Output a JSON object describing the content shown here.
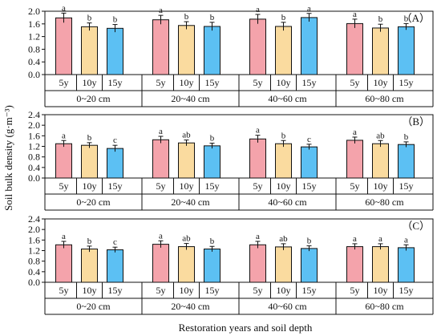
{
  "figure": {
    "ylabel": "Soil bulk density (g·m⁻³)",
    "xlabel": "Restoration years and soil depth"
  },
  "chart_data": [
    {
      "type": "bar",
      "panel_label": "（A）",
      "groups": [
        "0~20 cm",
        "20~40 cm",
        "40~60 cm",
        "60~80 cm"
      ],
      "categories": [
        "5y",
        "10y",
        "15y"
      ],
      "series": [
        {
          "values": [
            1.79,
            1.51,
            1.46
          ],
          "errors": [
            0.15,
            0.12,
            0.12
          ],
          "letters": [
            "a",
            "b",
            "b"
          ]
        },
        {
          "values": [
            1.73,
            1.55,
            1.52
          ],
          "errors": [
            0.14,
            0.12,
            0.13
          ],
          "letters": [
            "a",
            "b",
            "b"
          ]
        },
        {
          "values": [
            1.75,
            1.52,
            1.8
          ],
          "errors": [
            0.15,
            0.13,
            0.13
          ],
          "letters": [
            "a",
            "b",
            "a"
          ]
        },
        {
          "values": [
            1.61,
            1.47,
            1.51
          ],
          "errors": [
            0.14,
            0.12,
            0.1
          ],
          "letters": [
            "a",
            "b",
            "b"
          ]
        }
      ],
      "yticks": [
        "0.0",
        "0.4",
        "0.8",
        "1.2",
        "1.6",
        "2.0"
      ],
      "ylim": [
        0,
        2.0
      ],
      "colors": {
        "5y": "#f4a3ab",
        "10y": "#fadb9f",
        "15y": "#5cc0f3"
      }
    },
    {
      "type": "bar",
      "panel_label": "（B）",
      "groups": [
        "0~20 cm",
        "20~40 cm",
        "40~60 cm",
        "60~80 cm"
      ],
      "categories": [
        "5y",
        "10y",
        "15y"
      ],
      "series": [
        {
          "values": [
            1.3,
            1.24,
            1.12
          ],
          "errors": [
            0.12,
            0.1,
            0.12
          ],
          "letters": [
            "a",
            "b",
            "c"
          ]
        },
        {
          "values": [
            1.45,
            1.33,
            1.22
          ],
          "errors": [
            0.13,
            0.11,
            0.1
          ],
          "letters": [
            "a",
            "ab",
            "b"
          ]
        },
        {
          "values": [
            1.48,
            1.3,
            1.18
          ],
          "errors": [
            0.14,
            0.12,
            0.1
          ],
          "letters": [
            "a",
            "b",
            "c"
          ]
        },
        {
          "values": [
            1.43,
            1.3,
            1.27
          ],
          "errors": [
            0.12,
            0.12,
            0.1
          ],
          "letters": [
            "a",
            "ab",
            "b"
          ]
        }
      ],
      "yticks": [
        "0.0",
        "0.4",
        "0.8",
        "1.2",
        "1.6",
        "2.0",
        "2.4"
      ],
      "ylim": [
        0,
        2.4
      ],
      "colors": {
        "5y": "#f4a3ab",
        "10y": "#fadb9f",
        "15y": "#5cc0f3"
      }
    },
    {
      "type": "bar",
      "panel_label": "（C）",
      "groups": [
        "0~20 cm",
        "20~40 cm",
        "40~60 cm",
        "60~80 cm"
      ],
      "categories": [
        "5y",
        "10y",
        "15y"
      ],
      "series": [
        {
          "values": [
            1.42,
            1.26,
            1.23
          ],
          "errors": [
            0.13,
            0.11,
            0.1
          ],
          "letters": [
            "a",
            "b",
            "c"
          ]
        },
        {
          "values": [
            1.44,
            1.35,
            1.26
          ],
          "errors": [
            0.13,
            0.12,
            0.1
          ],
          "letters": [
            "a",
            "ab",
            "b"
          ]
        },
        {
          "values": [
            1.42,
            1.34,
            1.28
          ],
          "errors": [
            0.13,
            0.12,
            0.1
          ],
          "letters": [
            "a",
            "ab",
            "b"
          ]
        },
        {
          "values": [
            1.35,
            1.35,
            1.31
          ],
          "errors": [
            0.11,
            0.11,
            0.11
          ],
          "letters": [
            "a",
            "a",
            "a"
          ]
        }
      ],
      "yticks": [
        "0.0",
        "0.4",
        "0.8",
        "1.2",
        "1.6",
        "2.0",
        "2.4"
      ],
      "ylim": [
        0,
        2.4
      ],
      "colors": {
        "5y": "#f4a3ab",
        "10y": "#fadb9f",
        "15y": "#5cc0f3"
      }
    }
  ]
}
